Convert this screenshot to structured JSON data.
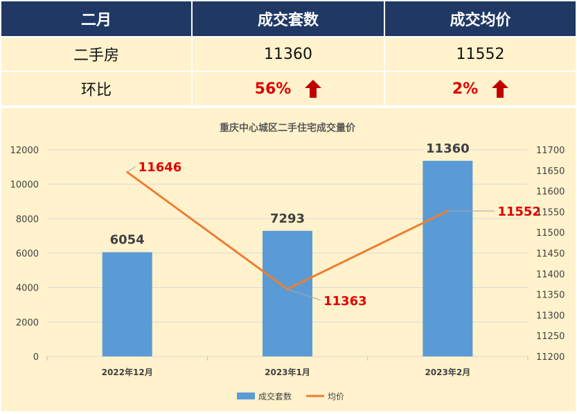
{
  "summary": {
    "headers": [
      "二月",
      "成交套数",
      "成交均价"
    ],
    "row1": {
      "label": "二手房",
      "count": "11360",
      "price": "11552"
    },
    "row2": {
      "label": "环比",
      "count_change": "56%",
      "price_change": "2%"
    },
    "colors": {
      "header_bg": "#1f3864",
      "row_bg": "#fff2cc",
      "up_arrow": "#c00000",
      "change_text": "#e00000"
    },
    "change_icon": "up-arrow-icon"
  },
  "chart_data": {
    "type": "bar+line",
    "title": "重庆中心城区二手住宅成交量价",
    "categories": [
      "2022年12月",
      "2023年1月",
      "2023年2月"
    ],
    "series": [
      {
        "name": "成交套数",
        "type": "bar",
        "axis": "left",
        "values": [
          6054,
          7293,
          11360
        ],
        "color": "#5b9bd5"
      },
      {
        "name": "均价",
        "type": "line",
        "axis": "right",
        "values": [
          11646,
          11363,
          11552
        ],
        "color": "#ed7d31"
      }
    ],
    "y_left": {
      "min": 0,
      "max": 12000,
      "step": 2000,
      "ticks": [
        "0",
        "2000",
        "4000",
        "6000",
        "8000",
        "10000",
        "12000"
      ]
    },
    "y_right": {
      "min": 11200,
      "max": 11700,
      "step": 50,
      "ticks": [
        "11200",
        "11250",
        "11300",
        "11350",
        "11400",
        "11450",
        "11500",
        "11550",
        "11600",
        "11650",
        "11700"
      ]
    },
    "grid": true,
    "legend": "bottom",
    "bar_labels": [
      "6054",
      "7293",
      "11360"
    ],
    "line_labels": [
      "11646",
      "11363",
      "11552"
    ],
    "line_label_color": "#e00000"
  }
}
